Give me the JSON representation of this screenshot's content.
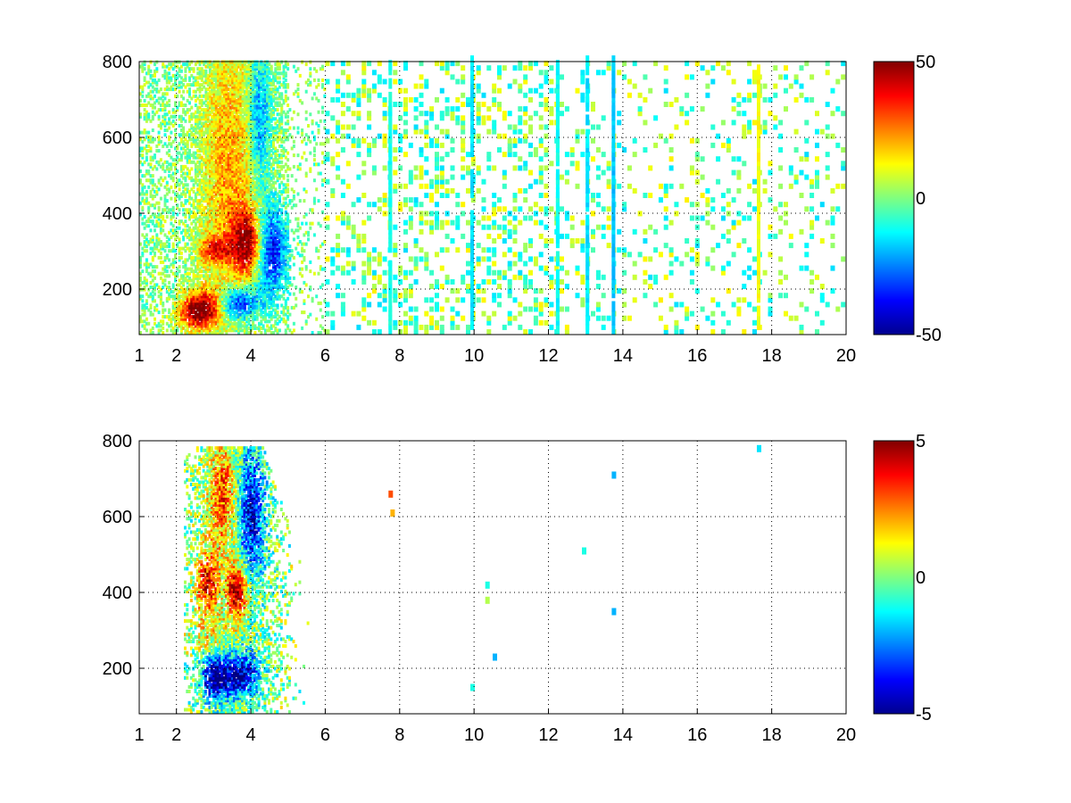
{
  "colormap": "jet",
  "chart_data": [
    {
      "type": "heatmap",
      "title": "",
      "xlabel": "",
      "ylabel": "",
      "grid": true,
      "xlim": [
        1,
        20
      ],
      "ylim": [
        80,
        800
      ],
      "xticks": [
        1,
        2,
        4,
        6,
        8,
        10,
        12,
        14,
        16,
        18,
        20
      ],
      "yticks": [
        200,
        400,
        600,
        800
      ],
      "colorbar": {
        "range": [
          -50,
          50
        ],
        "ticks": [
          -50,
          0,
          50
        ]
      },
      "features": [
        {
          "x": 2.8,
          "y": 150,
          "value": 40,
          "spread_x": 0.35,
          "spread_y": 35
        },
        {
          "x": 2.4,
          "y": 130,
          "value": 30,
          "spread_x": 0.3,
          "spread_y": 30
        },
        {
          "x": 3.9,
          "y": 320,
          "value": 45,
          "spread_x": 0.3,
          "spread_y": 60
        },
        {
          "x": 3.0,
          "y": 300,
          "value": 30,
          "spread_x": 0.3,
          "spread_y": 25
        },
        {
          "x": 3.4,
          "y": 500,
          "value": 22,
          "spread_x": 0.5,
          "spread_y": 250
        },
        {
          "x": 3.6,
          "y": 160,
          "value": -40,
          "spread_x": 0.4,
          "spread_y": 30
        },
        {
          "x": 4.5,
          "y": 300,
          "value": -40,
          "spread_x": 0.3,
          "spread_y": 80
        },
        {
          "x": 4.2,
          "y": 650,
          "value": -25,
          "spread_x": 0.2,
          "spread_y": 120
        }
      ],
      "vertical_bands": [
        {
          "x": 7.7,
          "value": -10
        },
        {
          "x": 9.9,
          "value": -15
        },
        {
          "x": 12.2,
          "value": -12
        },
        {
          "x": 13.0,
          "value": -15
        },
        {
          "x": 13.7,
          "value": -18
        },
        {
          "x": 17.6,
          "value": 12
        }
      ]
    },
    {
      "type": "heatmap",
      "title": "",
      "xlabel": "",
      "ylabel": "",
      "grid": true,
      "xlim": [
        1,
        20
      ],
      "ylim": [
        80,
        800
      ],
      "xticks": [
        1,
        2,
        4,
        6,
        8,
        10,
        12,
        14,
        16,
        18,
        20
      ],
      "yticks": [
        200,
        400,
        600,
        800
      ],
      "colorbar": {
        "range": [
          -5,
          5
        ],
        "ticks": [
          -5,
          0,
          5
        ]
      },
      "features": [
        {
          "x": 3.0,
          "y": 170,
          "value": -5,
          "spread_x": 0.25,
          "spread_y": 40
        },
        {
          "x": 3.7,
          "y": 180,
          "value": -4.5,
          "spread_x": 0.35,
          "spread_y": 40
        },
        {
          "x": 3.6,
          "y": 400,
          "value": 5,
          "spread_x": 0.2,
          "spread_y": 50
        },
        {
          "x": 2.8,
          "y": 420,
          "value": 4,
          "spread_x": 0.2,
          "spread_y": 60
        },
        {
          "x": 2.9,
          "y": 280,
          "value": 1,
          "spread_x": 0.4,
          "spread_y": 40
        },
        {
          "x": 4.0,
          "y": 600,
          "value": -4,
          "spread_x": 0.25,
          "spread_y": 120
        },
        {
          "x": 3.2,
          "y": 650,
          "value": 3,
          "spread_x": 0.25,
          "spread_y": 100
        }
      ],
      "isolated_points": [
        {
          "x": 7.7,
          "y": 650,
          "value": 3
        },
        {
          "x": 7.75,
          "y": 600,
          "value": 2
        },
        {
          "x": 10.3,
          "y": 370,
          "value": 0.5
        },
        {
          "x": 10.3,
          "y": 410,
          "value": -1
        },
        {
          "x": 9.9,
          "y": 140,
          "value": -1
        },
        {
          "x": 10.5,
          "y": 220,
          "value": -2
        },
        {
          "x": 12.9,
          "y": 500,
          "value": -1
        },
        {
          "x": 13.7,
          "y": 700,
          "value": -2
        },
        {
          "x": 13.7,
          "y": 340,
          "value": -2
        },
        {
          "x": 17.6,
          "y": 770,
          "value": -1.5
        }
      ]
    }
  ]
}
